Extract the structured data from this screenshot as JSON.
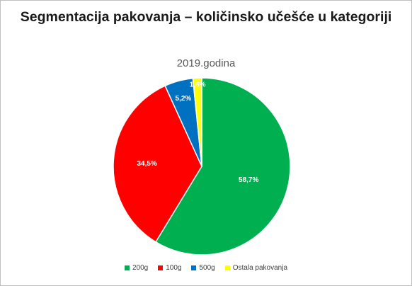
{
  "chart_data": {
    "type": "pie",
    "title": "Segmentacija pakovanja – količinsko učešće u kategoriji",
    "subtitle": "2019.godina",
    "legend_position": "bottom",
    "slices": [
      {
        "name": "200g",
        "value": 58.7,
        "label": "58,7%",
        "color": "#00b050",
        "label_color": "#ffffff"
      },
      {
        "name": "100g",
        "value": 34.5,
        "label": "34,5%",
        "color": "#ff0000",
        "label_color": "#ffffff"
      },
      {
        "name": "500g",
        "value": 5.2,
        "label": "5,2%",
        "color": "#0070c0",
        "label_color": "#ffffff"
      },
      {
        "name": "Ostala pakovanja",
        "value": 1.6,
        "label": "1,6%",
        "color": "#ffff00",
        "label_color": "#ffffff"
      }
    ]
  }
}
